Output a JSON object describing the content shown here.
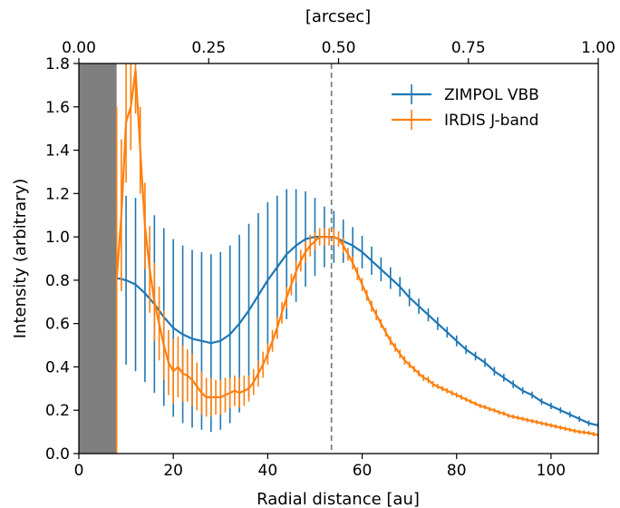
{
  "chart_data": {
    "type": "line",
    "xlabel": "Radial distance [au]",
    "ylabel": "Intensity (arbitrary)",
    "top_xlabel": "[arcsec]",
    "xlim": [
      0,
      110
    ],
    "ylim": [
      0,
      1.8
    ],
    "top_xlim": [
      0,
      1.0
    ],
    "x_ticks": [
      0,
      20,
      40,
      60,
      80,
      100
    ],
    "x_tick_labels": [
      "0",
      "20",
      "40",
      "60",
      "80",
      "100"
    ],
    "y_ticks": [
      0,
      0.2,
      0.4,
      0.6,
      0.8,
      1.0,
      1.2,
      1.4,
      1.6,
      1.8
    ],
    "y_tick_labels": [
      "0.0",
      "0.2",
      "0.4",
      "0.6",
      "0.8",
      "1.0",
      "1.2",
      "1.4",
      "1.6",
      "1.8"
    ],
    "top_x_ticks": [
      0,
      0.25,
      0.5,
      0.75,
      1.0
    ],
    "top_x_tick_labels": [
      "0.00",
      "0.25",
      "0.50",
      "0.75",
      "1.00"
    ],
    "masked_region_au": [
      0,
      8
    ],
    "vline_au": 53.5,
    "grid": false,
    "legend_placement": "top-right",
    "series": [
      {
        "name": "ZIMPOL VBB",
        "color": "#1f77b4",
        "x": [
          8,
          10,
          12,
          14,
          16,
          18,
          20,
          22,
          24,
          26,
          28,
          30,
          32,
          34,
          36,
          38,
          40,
          42,
          44,
          46,
          48,
          50,
          52,
          54,
          56,
          58,
          60,
          62,
          64,
          66,
          68,
          70,
          72,
          74,
          76,
          78,
          80,
          82,
          84,
          86,
          88,
          90,
          92,
          94,
          96,
          98,
          100,
          102,
          104,
          106,
          108,
          110
        ],
        "y": [
          0.81,
          0.8,
          0.78,
          0.74,
          0.69,
          0.63,
          0.58,
          0.55,
          0.53,
          0.52,
          0.51,
          0.52,
          0.55,
          0.6,
          0.66,
          0.73,
          0.8,
          0.86,
          0.92,
          0.96,
          0.99,
          1.0,
          1.0,
          1.0,
          0.98,
          0.96,
          0.93,
          0.89,
          0.85,
          0.81,
          0.77,
          0.72,
          0.68,
          0.64,
          0.6,
          0.56,
          0.52,
          0.48,
          0.45,
          0.42,
          0.38,
          0.35,
          0.32,
          0.29,
          0.27,
          0.24,
          0.22,
          0.2,
          0.18,
          0.16,
          0.14,
          0.13
        ],
        "err": [
          0.38,
          0.39,
          0.4,
          0.41,
          0.41,
          0.41,
          0.41,
          0.41,
          0.41,
          0.41,
          0.41,
          0.41,
          0.41,
          0.41,
          0.4,
          0.38,
          0.36,
          0.33,
          0.3,
          0.26,
          0.22,
          0.18,
          0.14,
          0.12,
          0.1,
          0.085,
          0.075,
          0.065,
          0.055,
          0.05,
          0.045,
          0.04,
          0.035,
          0.03,
          0.03,
          0.025,
          0.025,
          0.02,
          0.02,
          0.02,
          0.02,
          0.018,
          0.018,
          0.016,
          0.016,
          0.015,
          0.015,
          0.014,
          0.014,
          0.013,
          0.013,
          0.012
        ]
      },
      {
        "name": "IRDIS J-band",
        "color": "#ff7f0e",
        "x": [
          8,
          9,
          10,
          11,
          12,
          13,
          14,
          15,
          16,
          17,
          18,
          19,
          20,
          21,
          22,
          23,
          24,
          25,
          26,
          27,
          28,
          29,
          30,
          31,
          32,
          33,
          34,
          35,
          36,
          37,
          38,
          39,
          40,
          41,
          42,
          43,
          44,
          45,
          46,
          47,
          48,
          49,
          50,
          51,
          52,
          53,
          54,
          55,
          56,
          57,
          58,
          59,
          60,
          61,
          62,
          63,
          64,
          65,
          66,
          67,
          68,
          69,
          70,
          71,
          72,
          73,
          74,
          75,
          76,
          77,
          78,
          79,
          80,
          81,
          82,
          83,
          84,
          85,
          86,
          87,
          88,
          89,
          90,
          91,
          92,
          93,
          94,
          95,
          96,
          97,
          98,
          99,
          100,
          101,
          102,
          103,
          104,
          105,
          106,
          107,
          108,
          109,
          110
        ],
        "y": [
          0.8,
          1.1,
          1.53,
          1.6,
          1.77,
          1.4,
          1.05,
          0.85,
          0.7,
          0.6,
          0.5,
          0.42,
          0.38,
          0.4,
          0.37,
          0.36,
          0.34,
          0.31,
          0.28,
          0.26,
          0.26,
          0.26,
          0.26,
          0.27,
          0.28,
          0.29,
          0.28,
          0.29,
          0.3,
          0.33,
          0.37,
          0.41,
          0.46,
          0.52,
          0.58,
          0.65,
          0.72,
          0.78,
          0.84,
          0.89,
          0.93,
          0.96,
          0.98,
          1.0,
          1.0,
          1.0,
          1.0,
          0.99,
          0.96,
          0.92,
          0.88,
          0.83,
          0.78,
          0.73,
          0.68,
          0.64,
          0.6,
          0.56,
          0.52,
          0.49,
          0.46,
          0.43,
          0.41,
          0.39,
          0.37,
          0.35,
          0.34,
          0.32,
          0.31,
          0.3,
          0.29,
          0.28,
          0.27,
          0.26,
          0.25,
          0.24,
          0.23,
          0.22,
          0.215,
          0.205,
          0.2,
          0.19,
          0.185,
          0.175,
          0.17,
          0.165,
          0.16,
          0.155,
          0.15,
          0.145,
          0.14,
          0.135,
          0.13,
          0.125,
          0.12,
          0.115,
          0.11,
          0.105,
          0.1,
          0.098,
          0.095,
          0.09,
          0.085
        ],
        "err": [
          0.8,
          0.35,
          0.28,
          0.2,
          0.2,
          0.2,
          0.2,
          0.2,
          0.18,
          0.17,
          0.16,
          0.15,
          0.15,
          0.14,
          0.13,
          0.12,
          0.12,
          0.11,
          0.1,
          0.09,
          0.09,
          0.08,
          0.08,
          0.08,
          0.07,
          0.07,
          0.07,
          0.07,
          0.06,
          0.06,
          0.06,
          0.06,
          0.05,
          0.05,
          0.05,
          0.05,
          0.05,
          0.05,
          0.05,
          0.05,
          0.05,
          0.05,
          0.04,
          0.04,
          0.04,
          0.04,
          0.04,
          0.035,
          0.035,
          0.03,
          0.03,
          0.03,
          0.03,
          0.025,
          0.025,
          0.025,
          0.02,
          0.02,
          0.02,
          0.02,
          0.02,
          0.02,
          0.015,
          0.015,
          0.015,
          0.015,
          0.015,
          0.015,
          0.012,
          0.012,
          0.012,
          0.012,
          0.012,
          0.012,
          0.01,
          0.01,
          0.01,
          0.01,
          0.01,
          0.01,
          0.01,
          0.01,
          0.01,
          0.01,
          0.01,
          0.01,
          0.01,
          0.01,
          0.01,
          0.01,
          0.01,
          0.01,
          0.01,
          0.01,
          0.01,
          0.01,
          0.01,
          0.01,
          0.01,
          0.01,
          0.01,
          0.01,
          0.01
        ]
      }
    ]
  }
}
